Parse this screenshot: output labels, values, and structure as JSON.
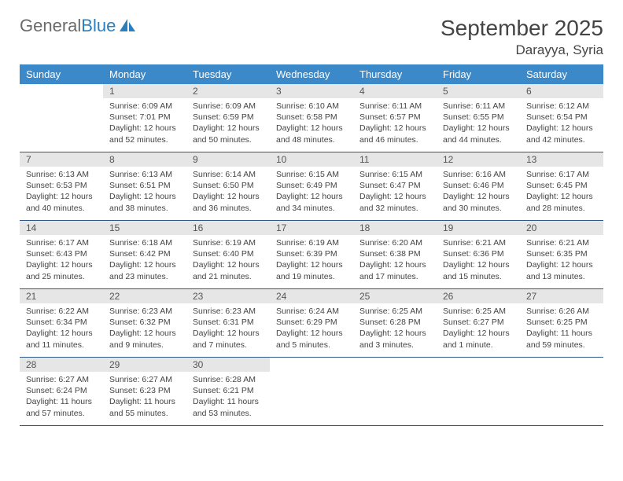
{
  "logo": {
    "text1": "General",
    "text2": "Blue"
  },
  "header": {
    "month": "September 2025",
    "location": "Darayya, Syria"
  },
  "days_of_week": [
    "Sunday",
    "Monday",
    "Tuesday",
    "Wednesday",
    "Thursday",
    "Friday",
    "Saturday"
  ],
  "colors": {
    "header_bg": "#3b89c9",
    "header_text": "#ffffff",
    "daynum_bg": "#e6e6e6",
    "border": "#2d5a8a",
    "logo_gray": "#6b6b6b",
    "logo_blue": "#2b7fbc"
  },
  "weeks": [
    [
      {
        "empty": true
      },
      {
        "n": "1",
        "sunrise": "Sunrise: 6:09 AM",
        "sunset": "Sunset: 7:01 PM",
        "daylight": "Daylight: 12 hours and 52 minutes."
      },
      {
        "n": "2",
        "sunrise": "Sunrise: 6:09 AM",
        "sunset": "Sunset: 6:59 PM",
        "daylight": "Daylight: 12 hours and 50 minutes."
      },
      {
        "n": "3",
        "sunrise": "Sunrise: 6:10 AM",
        "sunset": "Sunset: 6:58 PM",
        "daylight": "Daylight: 12 hours and 48 minutes."
      },
      {
        "n": "4",
        "sunrise": "Sunrise: 6:11 AM",
        "sunset": "Sunset: 6:57 PM",
        "daylight": "Daylight: 12 hours and 46 minutes."
      },
      {
        "n": "5",
        "sunrise": "Sunrise: 6:11 AM",
        "sunset": "Sunset: 6:55 PM",
        "daylight": "Daylight: 12 hours and 44 minutes."
      },
      {
        "n": "6",
        "sunrise": "Sunrise: 6:12 AM",
        "sunset": "Sunset: 6:54 PM",
        "daylight": "Daylight: 12 hours and 42 minutes."
      }
    ],
    [
      {
        "n": "7",
        "sunrise": "Sunrise: 6:13 AM",
        "sunset": "Sunset: 6:53 PM",
        "daylight": "Daylight: 12 hours and 40 minutes."
      },
      {
        "n": "8",
        "sunrise": "Sunrise: 6:13 AM",
        "sunset": "Sunset: 6:51 PM",
        "daylight": "Daylight: 12 hours and 38 minutes."
      },
      {
        "n": "9",
        "sunrise": "Sunrise: 6:14 AM",
        "sunset": "Sunset: 6:50 PM",
        "daylight": "Daylight: 12 hours and 36 minutes."
      },
      {
        "n": "10",
        "sunrise": "Sunrise: 6:15 AM",
        "sunset": "Sunset: 6:49 PM",
        "daylight": "Daylight: 12 hours and 34 minutes."
      },
      {
        "n": "11",
        "sunrise": "Sunrise: 6:15 AM",
        "sunset": "Sunset: 6:47 PM",
        "daylight": "Daylight: 12 hours and 32 minutes."
      },
      {
        "n": "12",
        "sunrise": "Sunrise: 6:16 AM",
        "sunset": "Sunset: 6:46 PM",
        "daylight": "Daylight: 12 hours and 30 minutes."
      },
      {
        "n": "13",
        "sunrise": "Sunrise: 6:17 AM",
        "sunset": "Sunset: 6:45 PM",
        "daylight": "Daylight: 12 hours and 28 minutes."
      }
    ],
    [
      {
        "n": "14",
        "sunrise": "Sunrise: 6:17 AM",
        "sunset": "Sunset: 6:43 PM",
        "daylight": "Daylight: 12 hours and 25 minutes."
      },
      {
        "n": "15",
        "sunrise": "Sunrise: 6:18 AM",
        "sunset": "Sunset: 6:42 PM",
        "daylight": "Daylight: 12 hours and 23 minutes."
      },
      {
        "n": "16",
        "sunrise": "Sunrise: 6:19 AM",
        "sunset": "Sunset: 6:40 PM",
        "daylight": "Daylight: 12 hours and 21 minutes."
      },
      {
        "n": "17",
        "sunrise": "Sunrise: 6:19 AM",
        "sunset": "Sunset: 6:39 PM",
        "daylight": "Daylight: 12 hours and 19 minutes."
      },
      {
        "n": "18",
        "sunrise": "Sunrise: 6:20 AM",
        "sunset": "Sunset: 6:38 PM",
        "daylight": "Daylight: 12 hours and 17 minutes."
      },
      {
        "n": "19",
        "sunrise": "Sunrise: 6:21 AM",
        "sunset": "Sunset: 6:36 PM",
        "daylight": "Daylight: 12 hours and 15 minutes."
      },
      {
        "n": "20",
        "sunrise": "Sunrise: 6:21 AM",
        "sunset": "Sunset: 6:35 PM",
        "daylight": "Daylight: 12 hours and 13 minutes."
      }
    ],
    [
      {
        "n": "21",
        "sunrise": "Sunrise: 6:22 AM",
        "sunset": "Sunset: 6:34 PM",
        "daylight": "Daylight: 12 hours and 11 minutes."
      },
      {
        "n": "22",
        "sunrise": "Sunrise: 6:23 AM",
        "sunset": "Sunset: 6:32 PM",
        "daylight": "Daylight: 12 hours and 9 minutes."
      },
      {
        "n": "23",
        "sunrise": "Sunrise: 6:23 AM",
        "sunset": "Sunset: 6:31 PM",
        "daylight": "Daylight: 12 hours and 7 minutes."
      },
      {
        "n": "24",
        "sunrise": "Sunrise: 6:24 AM",
        "sunset": "Sunset: 6:29 PM",
        "daylight": "Daylight: 12 hours and 5 minutes."
      },
      {
        "n": "25",
        "sunrise": "Sunrise: 6:25 AM",
        "sunset": "Sunset: 6:28 PM",
        "daylight": "Daylight: 12 hours and 3 minutes."
      },
      {
        "n": "26",
        "sunrise": "Sunrise: 6:25 AM",
        "sunset": "Sunset: 6:27 PM",
        "daylight": "Daylight: 12 hours and 1 minute."
      },
      {
        "n": "27",
        "sunrise": "Sunrise: 6:26 AM",
        "sunset": "Sunset: 6:25 PM",
        "daylight": "Daylight: 11 hours and 59 minutes."
      }
    ],
    [
      {
        "n": "28",
        "sunrise": "Sunrise: 6:27 AM",
        "sunset": "Sunset: 6:24 PM",
        "daylight": "Daylight: 11 hours and 57 minutes."
      },
      {
        "n": "29",
        "sunrise": "Sunrise: 6:27 AM",
        "sunset": "Sunset: 6:23 PM",
        "daylight": "Daylight: 11 hours and 55 minutes."
      },
      {
        "n": "30",
        "sunrise": "Sunrise: 6:28 AM",
        "sunset": "Sunset: 6:21 PM",
        "daylight": "Daylight: 11 hours and 53 minutes."
      },
      {
        "empty": true
      },
      {
        "empty": true
      },
      {
        "empty": true
      },
      {
        "empty": true
      }
    ]
  ]
}
